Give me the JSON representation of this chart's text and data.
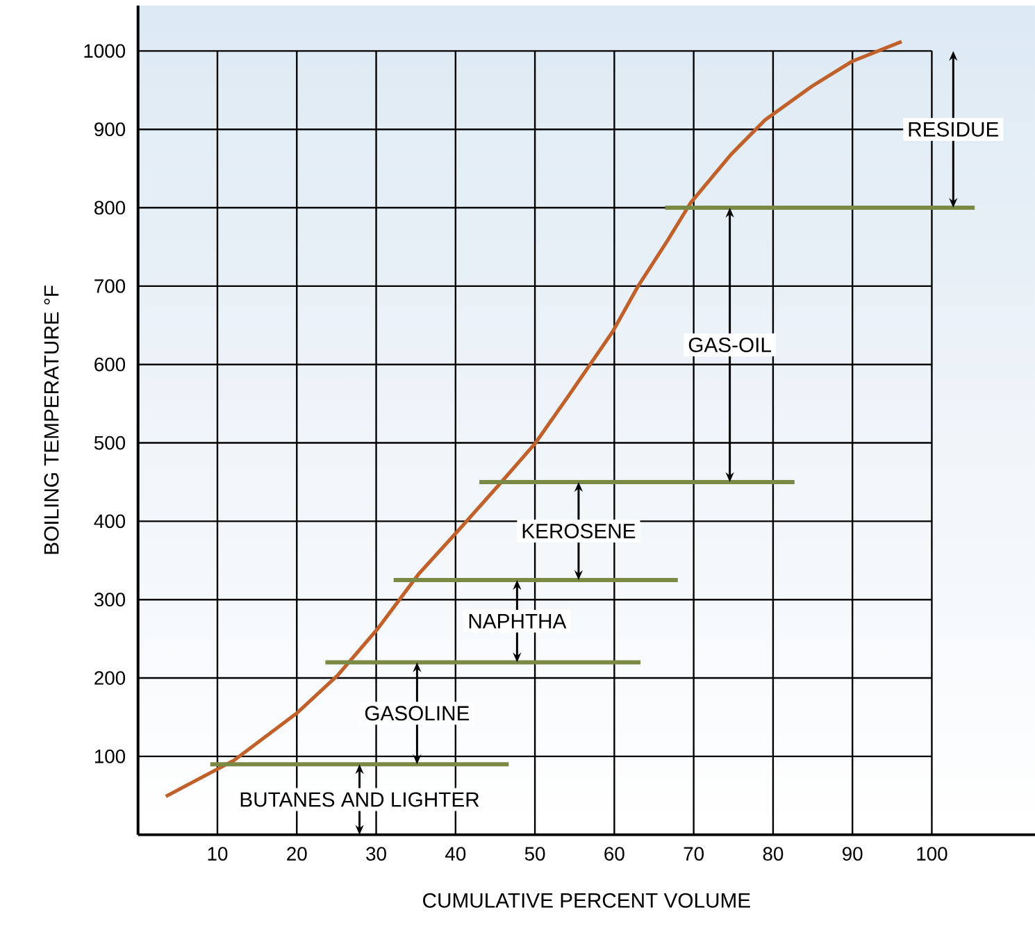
{
  "chart_data": {
    "type": "line",
    "xlabel": "CUMULATIVE PERCENT VOLUME",
    "ylabel": "BOILING TEMPERATURE °F",
    "xlim": [
      0,
      113
    ],
    "ylim": [
      0,
      1058
    ],
    "xticks": [
      10,
      20,
      30,
      40,
      50,
      60,
      70,
      80,
      90,
      100
    ],
    "yticks": [
      100,
      200,
      300,
      400,
      500,
      600,
      700,
      800,
      900,
      1000
    ],
    "grid": true,
    "marker": "none",
    "line_style": "solid",
    "series": [
      {
        "color": "#c0602a",
        "x": [
          3.5,
          12.1,
          20.1,
          25.2,
          30.2,
          35.3,
          40.5,
          45.6,
          50,
          54.3,
          59.8,
          63,
          66.7,
          69.6,
          74.7,
          79,
          84.9,
          90,
          96.2
        ],
        "values": [
          49,
          95,
          156,
          204,
          263,
          332,
          390,
          448,
          499,
          561,
          642,
          700,
          758,
          806,
          868,
          912,
          955,
          987,
          1012
        ]
      },
      {
        "color": "#7a8a45",
        "x": [
          9.1,
          46.7
        ],
        "values": [
          90,
          90
        ]
      },
      {
        "color": "#7a8a45",
        "x": [
          23.6,
          63.3
        ],
        "values": [
          220,
          220
        ]
      },
      {
        "color": "#7a8a45",
        "x": [
          32.2,
          68
        ],
        "values": [
          325,
          325
        ]
      },
      {
        "color": "#7a8a45",
        "x": [
          43,
          82.7
        ],
        "values": [
          450,
          450
        ]
      },
      {
        "color": "#7a8a45",
        "x": [
          66.4,
          105.4
        ],
        "values": [
          800,
          800
        ]
      }
    ],
    "annotations": [
      "RESIDUE",
      "GAS-OIL",
      "KEROSENE",
      "NAPHTHA",
      "GASOLINE",
      "BUTANES AND LIGHTER"
    ]
  }
}
